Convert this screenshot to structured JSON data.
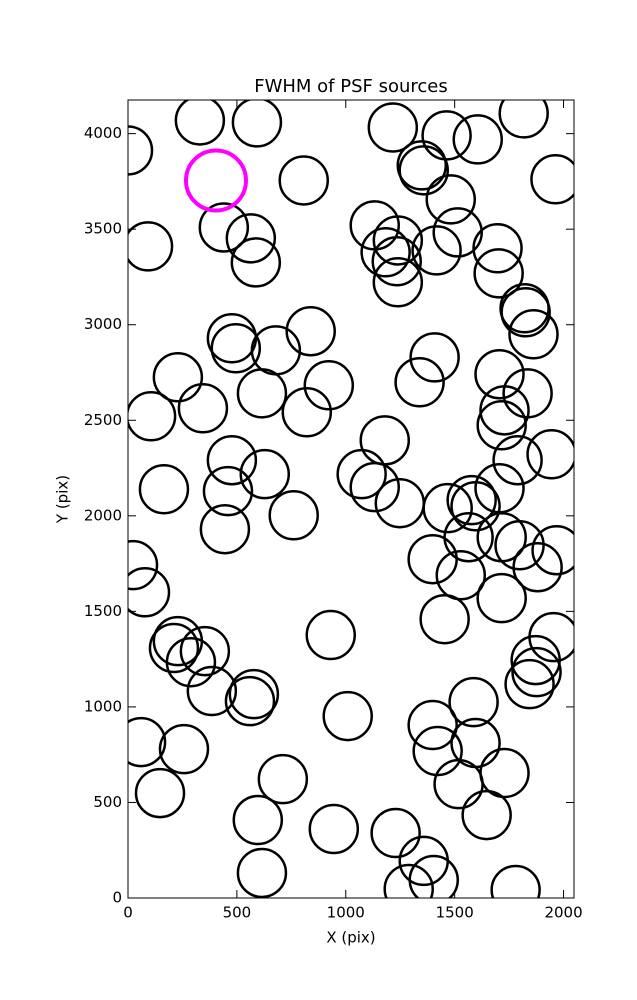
{
  "chart_data": {
    "type": "scatter",
    "title": "FWHM of PSF sources",
    "x_label": "X (pix)",
    "y_label": "Y (pix)",
    "xlim": [
      0,
      2048
    ],
    "ylim": [
      0,
      4176
    ],
    "xticks": [
      0,
      500,
      1000,
      1500,
      2000
    ],
    "yticks": [
      0,
      500,
      1000,
      1500,
      2000,
      2500,
      3000,
      3500,
      4000
    ],
    "series": [
      {
        "color": "#000000",
        "x": [
          0,
          330,
          592,
          92,
          440,
          564,
          587,
          807,
          1216,
          1463,
          1606,
          1817,
          1963,
          1349,
          1358,
          1482,
          1514,
          1133,
          1239,
          1183,
          1234,
          1239,
          1417,
          1697,
          1702,
          1821,
          1826,
          1862,
          839,
          477,
          495,
          679,
          229,
          615,
          922,
          106,
          344,
          821,
          1408,
          1339,
          1706,
          1835,
          1729,
          1716,
          1179,
          1945,
          1789,
          477,
          628,
          165,
          459,
          1073,
          1133,
          1248,
          1468,
          1578,
          1596,
          1706,
          761,
          445,
          1564,
          1716,
          1798,
          1968,
          1881,
          1399,
          1528,
          1716,
          1454,
          23,
          78,
          931,
          1954,
          229,
          211,
          353,
          289,
          385,
          578,
          560,
          1872,
          1876,
          1844,
          1587,
          1009,
          1399,
          1596,
          1422,
          1729,
          60,
          257,
          711,
          1518,
          147,
          1647,
          596,
          945,
          1229,
          1358,
          1404,
          1289,
          615,
          1780
        ],
        "y": [
          3912,
          4069,
          4059,
          3410,
          3509,
          3452,
          3326,
          3755,
          4032,
          3991,
          3970,
          4106,
          3761,
          3834,
          3808,
          3656,
          3483,
          3520,
          3441,
          3379,
          3332,
          3222,
          3389,
          3400,
          3269,
          3086,
          3065,
          2950,
          2966,
          2929,
          2877,
          2866,
          2725,
          2641,
          2683,
          2521,
          2563,
          2542,
          2829,
          2699,
          2741,
          2641,
          2552,
          2474,
          2395,
          2322,
          2291,
          2291,
          2218,
          2139,
          2129,
          2218,
          2150,
          2066,
          2040,
          2082,
          2050,
          2144,
          2003,
          1930,
          1888,
          1888,
          1846,
          1820,
          1731,
          1773,
          1689,
          1569,
          1459,
          1742,
          1600,
          1376,
          1365,
          1344,
          1308,
          1292,
          1234,
          1083,
          1067,
          1030,
          1245,
          1182,
          1119,
          1025,
          952,
          905,
          811,
          769,
          654,
          816,
          779,
          622,
          596,
          549,
          434,
          408,
          361,
          340,
          194,
          94,
          47,
          131,
          42
        ]
      },
      {
        "color": "#ff00ff",
        "x": [
          404
        ],
        "y": [
          3755
        ]
      }
    ]
  }
}
